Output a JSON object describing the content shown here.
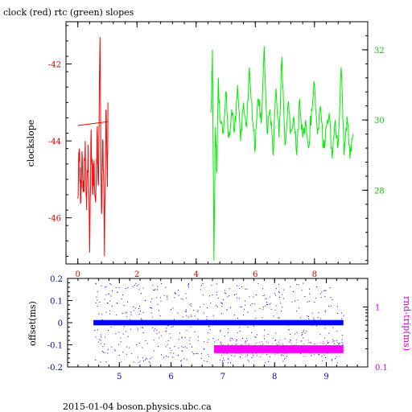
{
  "chart_data": [
    {
      "type": "line",
      "title": "clock (red) rtc (green) slopes",
      "ylabel": "clockslope",
      "x_axis": {
        "range": [
          -0.4,
          9.8
        ],
        "ticks": [
          0,
          2,
          4,
          6,
          8
        ],
        "tick_labels": [
          "0",
          "2",
          "4",
          "6",
          "8"
        ]
      },
      "left_axis": {
        "range": [
          -47.2,
          -40.9
        ],
        "ticks": [
          -46,
          -44,
          -42
        ],
        "tick_labels": [
          "-46",
          "-44",
          "-42"
        ],
        "color": "#cc0000"
      },
      "right_axis": {
        "range": [
          25.9,
          32.8
        ],
        "ticks": [
          28,
          30,
          32
        ],
        "tick_labels": [
          "28",
          "30",
          "32"
        ],
        "color": "#00cc00"
      },
      "series": [
        {
          "name": "clock",
          "color": "#ff0000",
          "axis": "left",
          "x": [
            0.0,
            0.05,
            0.1,
            0.15,
            0.2,
            0.25,
            0.3,
            0.35,
            0.4,
            0.45,
            0.5,
            0.55,
            0.6,
            0.65,
            0.7,
            0.75,
            0.8,
            0.85,
            0.9,
            0.95,
            1.0,
            1.02
          ],
          "y": [
            -45.5,
            -44.2,
            -45.6,
            -44.4,
            -45.3,
            -44.0,
            -45.8,
            -44.1,
            -46.9,
            -43.7,
            -45.3,
            -44.5,
            -45.6,
            -43.8,
            -45.1,
            -41.3,
            -45.9,
            -44.0,
            -47.0,
            -43.2,
            -45.2,
            -43.0
          ]
        },
        {
          "name": "clock-trend",
          "color": "#ff0000",
          "axis": "left",
          "x": [
            0.0,
            1.02
          ],
          "y": [
            -43.6,
            -43.5
          ]
        },
        {
          "name": "rtc",
          "color": "#00ee00",
          "axis": "right",
          "x": [
            4.5,
            4.55,
            4.6,
            4.65,
            4.7,
            4.75,
            4.8,
            4.9,
            5.0,
            5.1,
            5.2,
            5.3,
            5.4,
            5.5,
            5.6,
            5.7,
            5.8,
            5.9,
            6.0,
            6.1,
            6.2,
            6.3,
            6.4,
            6.5,
            6.6,
            6.7,
            6.8,
            6.9,
            7.0,
            7.1,
            7.2,
            7.3,
            7.4,
            7.5,
            7.6,
            7.7,
            7.8,
            7.9,
            8.0,
            8.1,
            8.2,
            8.3,
            8.4,
            8.5,
            8.6,
            8.7,
            8.8,
            8.9,
            9.0,
            9.1,
            9.2,
            9.3
          ],
          "y": [
            30.2,
            32.0,
            26.0,
            29.8,
            28.5,
            31.2,
            30.0,
            29.6,
            30.8,
            29.5,
            30.3,
            29.7,
            31.0,
            29.4,
            30.5,
            29.8,
            31.5,
            30.0,
            29.2,
            30.6,
            29.9,
            32.1,
            29.6,
            30.3,
            29.0,
            30.9,
            29.5,
            31.8,
            29.3,
            30.4,
            29.7,
            30.1,
            29.0,
            30.6,
            29.5,
            30.0,
            29.2,
            30.3,
            31.0,
            29.6,
            30.4,
            29.2,
            29.8,
            30.2,
            28.9,
            30.0,
            29.3,
            31.5,
            29.0,
            30.1,
            28.9,
            29.6
          ]
        }
      ]
    },
    {
      "type": "scatter",
      "ylabel": "offset(ms)",
      "y2label": "rnd-trip(ms)",
      "x_axis": {
        "range": [
          4.0,
          9.8
        ],
        "ticks": [
          5,
          6,
          7,
          8,
          9
        ],
        "tick_labels": [
          "5",
          "6",
          "7",
          "8",
          "9"
        ],
        "color": "#0000cc"
      },
      "left_axis": {
        "range": [
          -0.2,
          0.2
        ],
        "ticks": [
          -0.2,
          -0.1,
          0,
          0.1,
          0.2
        ],
        "tick_labels": [
          "-0.2",
          "-0.1",
          "0",
          "0.1",
          "0.2"
        ],
        "color": "#0000cc"
      },
      "right_axis": {
        "scale": "log",
        "range": [
          0.1,
          3.0
        ],
        "ticks": [
          0.1,
          1
        ],
        "tick_labels": [
          "0.1",
          "1"
        ],
        "color": "#cc00cc"
      },
      "series": [
        {
          "name": "offset",
          "color": "#0000ff",
          "axis": "left",
          "x_range": [
            4.5,
            9.33
          ],
          "band": [
            -0.012,
            0.012
          ]
        },
        {
          "name": "rnd-trip",
          "color": "#ff00ff",
          "axis": "right",
          "x_range": [
            6.83,
            9.33
          ],
          "band": [
            0.17,
            0.23
          ]
        }
      ]
    }
  ],
  "footer": "2015-01-04 boson.physics.ubc.ca"
}
